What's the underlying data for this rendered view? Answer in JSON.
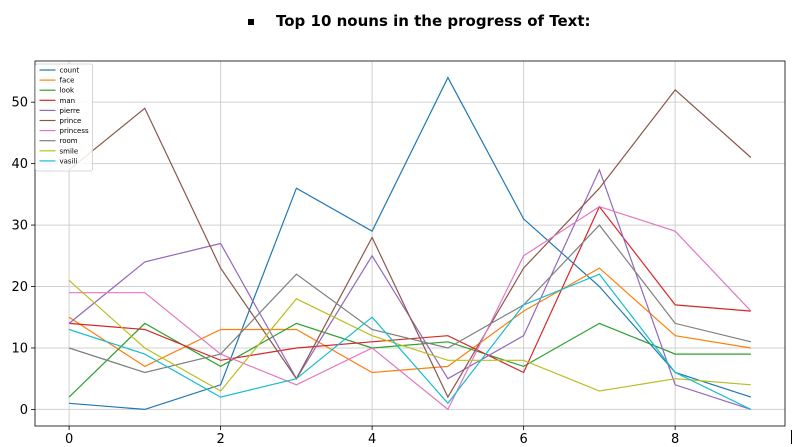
{
  "page": {
    "title_bullet_icon": "square-bullet-icon",
    "title": "Top 10 nouns in the progress of Text:"
  },
  "chart_data": {
    "type": "line",
    "title": "",
    "xlabel": "",
    "ylabel": "",
    "xlim": [
      -0.45,
      9.45
    ],
    "ylim": [
      -2.7,
      56.7
    ],
    "xticks": [
      0,
      2,
      4,
      6,
      8
    ],
    "yticks": [
      0,
      10,
      20,
      30,
      40,
      50
    ],
    "grid": true,
    "legend_position": "top-left",
    "x": [
      0,
      1,
      2,
      3,
      4,
      5,
      6,
      7,
      8,
      9
    ],
    "series": [
      {
        "name": "count",
        "color": "#1f77b4",
        "values": [
          1,
          0,
          4,
          36,
          29,
          54,
          31,
          20,
          6,
          2
        ]
      },
      {
        "name": "face",
        "color": "#ff7f0e",
        "values": [
          15,
          7,
          13,
          13,
          6,
          7,
          16,
          23,
          12,
          10
        ]
      },
      {
        "name": "look",
        "color": "#2ca02c",
        "values": [
          2,
          14,
          7,
          14,
          10,
          11,
          7,
          14,
          9,
          9
        ]
      },
      {
        "name": "man",
        "color": "#d62728",
        "values": [
          14,
          13,
          8,
          10,
          11,
          12,
          6,
          33,
          17,
          16
        ]
      },
      {
        "name": "pierre",
        "color": "#9467bd",
        "values": [
          14,
          24,
          27,
          5,
          25,
          5,
          12,
          39,
          4,
          0
        ]
      },
      {
        "name": "prince",
        "color": "#8c564b",
        "values": [
          39,
          49,
          23,
          5,
          28,
          2,
          23,
          36,
          52,
          41
        ]
      },
      {
        "name": "princess",
        "color": "#e377c2",
        "values": [
          19,
          19,
          9,
          4,
          10,
          0,
          25,
          33,
          29,
          16
        ]
      },
      {
        "name": "room",
        "color": "#7f7f7f",
        "values": [
          10,
          6,
          9,
          22,
          13,
          10,
          17,
          30,
          14,
          11
        ]
      },
      {
        "name": "smile",
        "color": "#bcbd22",
        "values": [
          21,
          10,
          3,
          18,
          12,
          8,
          8,
          3,
          5,
          4
        ]
      },
      {
        "name": "vasili",
        "color": "#17becf",
        "values": [
          13,
          9,
          2,
          5,
          15,
          1,
          17,
          22,
          6,
          0
        ]
      }
    ]
  }
}
